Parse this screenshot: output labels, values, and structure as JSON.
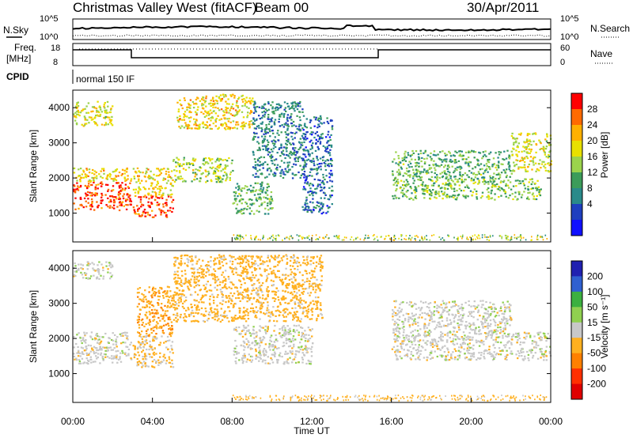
{
  "header": {
    "station": "Christmas Valley West (fitACF)",
    "beam": "Beam 00",
    "date": "30/Apr/2011"
  },
  "strips": {
    "nsky_label": "N.Sky",
    "nsearch_label": "N.Search",
    "freq_label_line1": "Freq.",
    "freq_label_line2": "[MHz]",
    "nave_label": "Nave",
    "cpid_label": "CPID",
    "cpid_mode": "normal 150 IF",
    "noise_ticks": [
      "10^5",
      "10^0"
    ],
    "freq_ticks": [
      "18",
      "8"
    ],
    "nave_ticks": [
      "60",
      "0"
    ]
  },
  "chart_data": [
    {
      "type": "heatmap",
      "panel": "power",
      "xlabel": "Time UT",
      "ylabel": "Slant Range [km]",
      "xlim": [
        0,
        24
      ],
      "ylim": [
        180,
        4500
      ],
      "yticks": [
        1000,
        2000,
        3000,
        4000
      ],
      "colorbar": {
        "label": "Power [dB]",
        "ticks": [
          "28",
          "24",
          "20",
          "16",
          "12",
          "8",
          "4"
        ],
        "colors": [
          "#ff0000",
          "#ff6a00",
          "#ffb000",
          "#e8e000",
          "#9bd34c",
          "#3c9c5a",
          "#2a8a8a",
          "#1f3fbf",
          "#1010ff"
        ]
      },
      "regions": [
        {
          "t0": 0.0,
          "t1": 2.9,
          "r0": 1100,
          "r1": 1900,
          "value": 28
        },
        {
          "t0": 0.0,
          "t1": 2.9,
          "r0": 1900,
          "r1": 2300,
          "value": 20
        },
        {
          "t0": 0.0,
          "t1": 2.0,
          "r0": 3500,
          "r1": 4200,
          "value": 18
        },
        {
          "t0": 3.0,
          "t1": 5.0,
          "r0": 900,
          "r1": 1500,
          "value": 28
        },
        {
          "t0": 3.0,
          "t1": 5.0,
          "r0": 1500,
          "r1": 2300,
          "value": 20
        },
        {
          "t0": 5.0,
          "t1": 8.0,
          "r0": 1900,
          "r1": 2600,
          "value": 16
        },
        {
          "t0": 5.2,
          "t1": 9.0,
          "r0": 3400,
          "r1": 4400,
          "value": 20
        },
        {
          "t0": 8.0,
          "t1": 10.0,
          "r0": 1000,
          "r1": 1900,
          "value": 12
        },
        {
          "t0": 9.0,
          "t1": 11.5,
          "r0": 2000,
          "r1": 4200,
          "value": 8
        },
        {
          "t0": 11.5,
          "t1": 13.0,
          "r0": 1000,
          "r1": 3800,
          "value": 6
        },
        {
          "t0": 16.0,
          "t1": 23.5,
          "r0": 1400,
          "r1": 2000,
          "value": 14
        },
        {
          "t0": 16.0,
          "t1": 22.0,
          "r0": 2000,
          "r1": 2800,
          "value": 12
        },
        {
          "t0": 22.0,
          "t1": 24.0,
          "r0": 2200,
          "r1": 3300,
          "value": 18
        }
      ]
    },
    {
      "type": "heatmap",
      "panel": "velocity",
      "xlabel": "Time UT",
      "ylabel": "Slant Range [km]",
      "xlim": [
        0,
        24
      ],
      "ylim": [
        180,
        4500
      ],
      "xticks": [
        "00:00",
        "04:00",
        "08:00",
        "12:00",
        "16:00",
        "20:00",
        "00:00"
      ],
      "yticks": [
        1000,
        2000,
        3000,
        4000
      ],
      "colorbar": {
        "label": "Velocity [m s⁻¹]",
        "ticks": [
          "200",
          "100",
          "50",
          "15",
          "-15",
          "-50",
          "-100",
          "-200"
        ],
        "colors": [
          "#2020b0",
          "#3060d0",
          "#3cb040",
          "#90d050",
          "#c8c8c8",
          "#ffb020",
          "#ff8000",
          "#ff3000",
          "#e00000"
        ]
      },
      "regions": [
        {
          "t0": 0.0,
          "t1": 2.9,
          "r0": 1300,
          "r1": 2200,
          "value": 0
        },
        {
          "t0": 0.0,
          "t1": 2.0,
          "r0": 3700,
          "r1": 4200,
          "value": 0
        },
        {
          "t0": 3.0,
          "t1": 5.0,
          "r0": 1200,
          "r1": 2100,
          "value": -20
        },
        {
          "t0": 3.2,
          "t1": 5.0,
          "r0": 2100,
          "r1": 3500,
          "value": -40
        },
        {
          "t0": 5.0,
          "t1": 12.5,
          "r0": 2500,
          "r1": 4400,
          "value": -30
        },
        {
          "t0": 8.0,
          "t1": 12.0,
          "r0": 1300,
          "r1": 2400,
          "value": 0
        },
        {
          "t0": 16.0,
          "t1": 24.0,
          "r0": 1400,
          "r1": 2200,
          "value": 0
        },
        {
          "t0": 16.0,
          "t1": 22.0,
          "r0": 2200,
          "r1": 3100,
          "value": 0
        }
      ]
    }
  ]
}
